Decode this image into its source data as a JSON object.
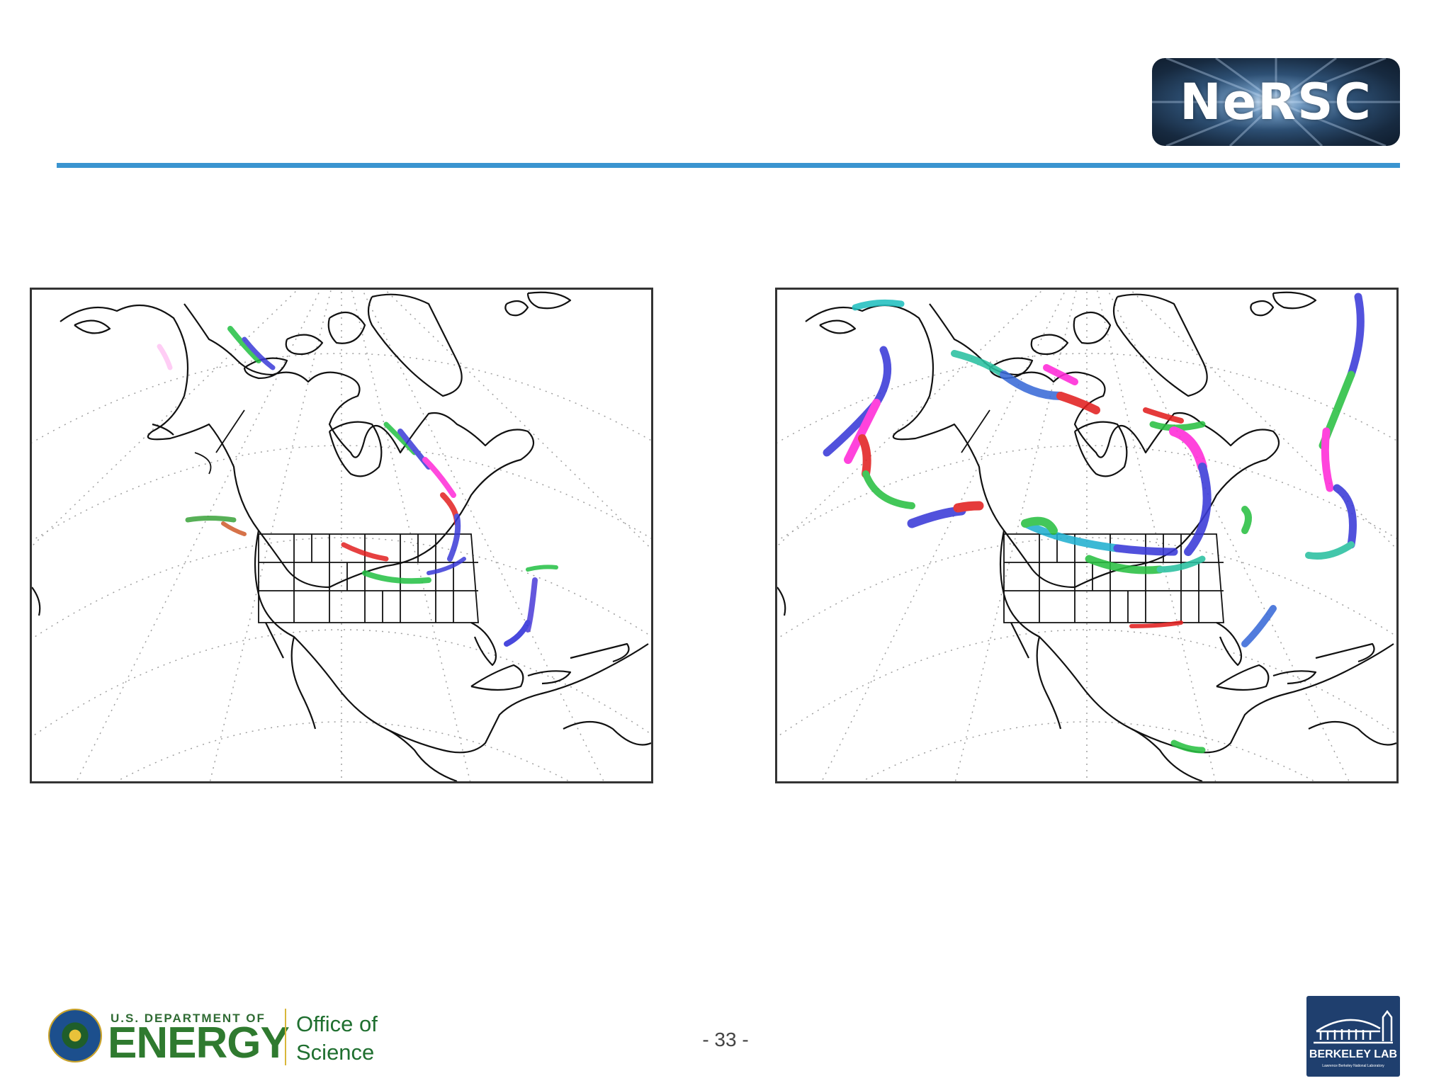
{
  "header": {
    "logo_text": "NeRSC"
  },
  "colors": {
    "rule": "#3a94d0",
    "doe_green": "#2f7a2f",
    "berkeley_blue": "#1f3f6e"
  },
  "maps": {
    "left": {
      "name": "North America frontal boundaries (left panel)"
    },
    "right": {
      "name": "North America frontal boundaries (right panel)"
    }
  },
  "footer": {
    "doe_department": "U.S. DEPARTMENT OF",
    "doe_energy": "ENERGY",
    "doe_office": "Office of\nScience",
    "page_number": "- 33 -",
    "berkeley_label": "BERKELEY LAB",
    "berkeley_sub": "Lawrence Berkeley National Laboratory"
  }
}
